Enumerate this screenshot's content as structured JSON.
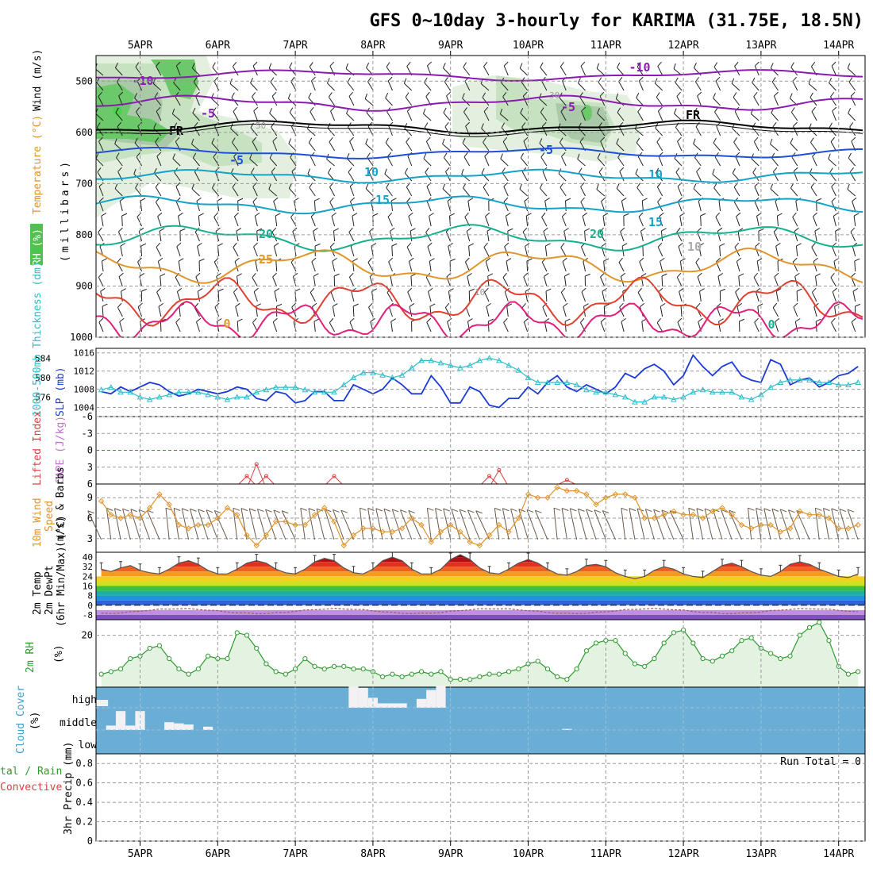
{
  "title": "GFS 0~10day 3-hourly for KARIMA (31.75E, 18.5N)",
  "date_labels": [
    "5APR",
    "6APR",
    "7APR",
    "8APR",
    "9APR",
    "10APR",
    "11APR",
    "12APR",
    "13APR",
    "14APR"
  ],
  "colors": {
    "grid": "#9a9a9a",
    "cloud_bg": "#6aaed6",
    "cloud_fill": "#f3f1f4",
    "slp": "#1c3bd2",
    "thickness": "#2fbcc9",
    "wind10m": "#e0942c",
    "rh2m": "#2e9a2e",
    "cape": "#d94040",
    "purple_iso": "#8a1ab0",
    "blue_iso": "#1e4fd8",
    "cyan_iso": "#14a3c8",
    "teal_iso": "#14b08e",
    "orange_iso": "#e0962a",
    "red_iso": "#e04030",
    "magenta_iso": "#e0207a"
  },
  "panels": {
    "upper_air": {
      "ylabel_rh": "RH (%)",
      "ylabel_temp": "Temperature (°C)",
      "ylabel_wind": "Wind (m/s)",
      "ylabel_units": "(millibars)",
      "pressure_ticks": [
        "500",
        "600",
        "700",
        "800",
        "900",
        "1000"
      ],
      "isotherm_labels": [
        "-10",
        "-5",
        "FR",
        "-5",
        "10",
        "15",
        "20",
        "25",
        "0",
        "-10",
        "-5",
        "FR",
        "-5",
        "10",
        "15",
        "20",
        "10",
        "0"
      ],
      "rh_labels": [
        "50",
        "30",
        "10"
      ]
    },
    "slp_thickness": {
      "ylabel_left": "1000-500mb Thickness (dm)",
      "ylabel_right": "SLP (mb)",
      "thickness_ticks": [
        "584",
        "580",
        "576"
      ],
      "slp_ticks": [
        "1016",
        "1012",
        "1008",
        "1004"
      ]
    },
    "stability": {
      "ylabel_left": "Lifted Index",
      "ylabel_right": "CAPE (J/kg)",
      "ticks": [
        "-6",
        "-3",
        "0",
        "3",
        "6"
      ]
    },
    "wind10m": {
      "ylabel_left": "10m Wind",
      "ylabel_mid": "Speed",
      "ylabel_right": "(m/s) & Barbs",
      "ticks": [
        "9",
        "6",
        "3"
      ]
    },
    "temp2m": {
      "ylabel_1": "2m Temp",
      "ylabel_2": "2m DewPt",
      "ylabel_3": "(6hr Min/Max) (°C)",
      "ticks": [
        "40",
        "32",
        "24",
        "16",
        "8",
        "0",
        "-8"
      ]
    },
    "rh2m": {
      "ylabel_left": "2m RH",
      "ylabel_units": "(%)",
      "ticks": [
        "20"
      ]
    },
    "cloud": {
      "ylabel": "Cloud Cover",
      "ylabel_units": "(%)",
      "levels": [
        "high",
        "middle",
        "low"
      ]
    },
    "precip": {
      "ylabel_left_1": "tal / Rain",
      "ylabel_left_2": "Convective",
      "ylabel_right": "3hr Precip (mm)",
      "ticks": [
        "0.8",
        "0.6",
        "0.4",
        "0.2",
        "0"
      ],
      "run_total": "Run Total = 0"
    }
  },
  "chart_data": [
    {
      "type": "line",
      "name": "slp",
      "x_unit": "days from 5APR 00Z",
      "ylabel": "SLP (mb)",
      "ylim": [
        1002,
        1017
      ],
      "x": [
        -0.5,
        -0.375,
        -0.25,
        -0.125,
        0,
        0.125,
        0.25,
        0.375,
        0.5,
        0.625,
        0.75,
        0.875,
        1,
        1.125,
        1.25,
        1.375,
        1.5,
        1.625,
        1.75,
        1.875,
        2,
        2.125,
        2.25,
        2.375,
        2.5,
        2.625,
        2.75,
        2.875,
        3,
        3.125,
        3.25,
        3.375,
        3.5,
        3.625,
        3.75,
        3.875,
        4,
        4.125,
        4.25,
        4.375,
        4.5,
        4.625,
        4.75,
        4.875,
        5,
        5.125,
        5.25,
        5.375,
        5.5,
        5.625,
        5.75,
        5.875,
        6,
        6.125,
        6.25,
        6.375,
        6.5,
        6.625,
        6.75,
        6.875,
        7,
        7.125,
        7.25,
        7.375,
        7.5,
        7.625,
        7.75,
        7.875,
        8,
        8.125,
        8.25,
        8.375,
        8.5,
        8.625,
        8.75,
        8.875,
        9,
        9.125,
        9.25
      ],
      "values": [
        1007.5,
        1007,
        1008.5,
        1007.5,
        1008.5,
        1009.5,
        1009,
        1007.5,
        1006.5,
        1007,
        1008,
        1007.5,
        1007,
        1007.5,
        1008.5,
        1008,
        1006,
        1005.5,
        1007.5,
        1007,
        1005,
        1005.5,
        1007.5,
        1007.5,
        1005.5,
        1005.5,
        1009,
        1008,
        1007,
        1008,
        1010.5,
        1009,
        1007,
        1007,
        1011,
        1008.5,
        1005,
        1005,
        1008.5,
        1007.5,
        1004.5,
        1004,
        1006,
        1006,
        1008.5,
        1007,
        1009.5,
        1011,
        1008.5,
        1007.5,
        1009,
        1008,
        1007,
        1008.5,
        1011.5,
        1010.5,
        1012.5,
        1013.5,
        1012,
        1009,
        1011,
        1015.5,
        1013,
        1011,
        1013,
        1014,
        1011,
        1010,
        1009.5,
        1014.5,
        1013.5,
        1009,
        1010,
        1010.5,
        1008.5,
        1009.5,
        1011,
        1011.5,
        1013
      ]
    },
    {
      "type": "line",
      "name": "thickness",
      "x_unit": "days from 5APR 00Z",
      "ylabel": "1000-500mb Thickness (dm)",
      "ylim": [
        572,
        586
      ],
      "x": [
        -0.5,
        -0.375,
        -0.25,
        -0.125,
        0,
        0.125,
        0.25,
        0.375,
        0.5,
        0.625,
        0.75,
        0.875,
        1,
        1.125,
        1.25,
        1.375,
        1.5,
        1.625,
        1.75,
        1.875,
        2,
        2.125,
        2.25,
        2.375,
        2.5,
        2.625,
        2.75,
        2.875,
        3,
        3.125,
        3.25,
        3.375,
        3.5,
        3.625,
        3.75,
        3.875,
        4,
        4.125,
        4.25,
        4.375,
        4.5,
        4.625,
        4.75,
        4.875,
        5,
        5.125,
        5.25,
        5.375,
        5.5,
        5.625,
        5.75,
        5.875,
        6,
        6.125,
        6.25,
        6.375,
        6.5,
        6.625,
        6.75,
        6.875,
        7,
        7.125,
        7.25,
        7.375,
        7.5,
        7.625,
        7.75,
        7.875,
        8,
        8.125,
        8.25,
        8.375,
        8.5,
        8.625,
        8.75,
        8.875,
        9,
        9.125,
        9.25
      ],
      "values": [
        577.5,
        578,
        577,
        577,
        576,
        575.5,
        576,
        576.5,
        577,
        577,
        577,
        576.5,
        576,
        575.5,
        576,
        576,
        577,
        577.5,
        578,
        578,
        578,
        577.5,
        577,
        577,
        577,
        578.5,
        580,
        581,
        581,
        580.5,
        580,
        580.5,
        582,
        583.5,
        583.5,
        583,
        582.5,
        582,
        582.5,
        583.5,
        584,
        583.5,
        582.5,
        581.5,
        580,
        579,
        579,
        579,
        579,
        578.5,
        577.5,
        577,
        577,
        576.5,
        576,
        575,
        575,
        576,
        576,
        575.5,
        576,
        577,
        577.5,
        577,
        577,
        577,
        576,
        575.5,
        576.5,
        578,
        579,
        579.5,
        579.5,
        579.5,
        579,
        579,
        578.5,
        578.5,
        579
      ]
    },
    {
      "type": "line",
      "name": "10m wind speed",
      "x_unit": "days from 5APR 00Z",
      "ylabel": "(m/s)",
      "ylim": [
        1,
        11
      ],
      "x": [
        -0.5,
        -0.375,
        -0.25,
        -0.125,
        0,
        0.125,
        0.25,
        0.375,
        0.5,
        0.625,
        0.75,
        0.875,
        1,
        1.125,
        1.25,
        1.375,
        1.5,
        1.625,
        1.75,
        1.875,
        2,
        2.125,
        2.25,
        2.375,
        2.5,
        2.625,
        2.75,
        2.875,
        3,
        3.125,
        3.25,
        3.375,
        3.5,
        3.625,
        3.75,
        3.875,
        4,
        4.125,
        4.25,
        4.375,
        4.5,
        4.625,
        4.75,
        4.875,
        5,
        5.125,
        5.25,
        5.375,
        5.5,
        5.625,
        5.75,
        5.875,
        6,
        6.125,
        6.25,
        6.375,
        6.5,
        6.625,
        6.75,
        6.875,
        7,
        7.125,
        7.25,
        7.375,
        7.5,
        7.625,
        7.75,
        7.875,
        8,
        8.125,
        8.25,
        8.375,
        8.5,
        8.625,
        8.75,
        8.875,
        9,
        9.125,
        9.25
      ],
      "values": [
        8.5,
        6.5,
        6,
        6.5,
        6,
        7.5,
        9.5,
        8,
        5,
        4.5,
        5,
        5,
        6,
        7.5,
        6.5,
        3.5,
        2,
        3.5,
        5.5,
        5.5,
        5,
        5,
        6.5,
        7.5,
        5.5,
        2,
        3.5,
        4.5,
        4.5,
        4,
        4,
        4.5,
        6,
        5,
        2.5,
        4,
        5,
        4,
        2.5,
        2,
        3.5,
        5,
        4,
        6,
        9.5,
        9,
        9,
        10.5,
        10,
        10,
        9.5,
        8,
        9,
        9.5,
        9.5,
        9,
        6,
        6,
        6.5,
        7,
        6.5,
        6.5,
        6,
        7,
        7.5,
        6.5,
        5,
        4.5,
        5,
        5,
        4,
        4.5,
        7,
        6.5,
        6.5,
        6,
        4.5,
        4.5,
        5
      ]
    },
    {
      "type": "area",
      "name": "2m temp",
      "x_unit": "days from 5APR 00Z",
      "ylabel": "(°C)",
      "ylim": [
        -12,
        44
      ],
      "x": [
        -0.5,
        -0.375,
        -0.25,
        -0.125,
        0,
        0.125,
        0.25,
        0.375,
        0.5,
        0.625,
        0.75,
        0.875,
        1,
        1.125,
        1.25,
        1.375,
        1.5,
        1.625,
        1.75,
        1.875,
        2,
        2.125,
        2.25,
        2.375,
        2.5,
        2.625,
        2.75,
        2.875,
        3,
        3.125,
        3.25,
        3.375,
        3.5,
        3.625,
        3.75,
        3.875,
        4,
        4.125,
        4.25,
        4.375,
        4.5,
        4.625,
        4.75,
        4.875,
        5,
        5.125,
        5.25,
        5.375,
        5.5,
        5.625,
        5.75,
        5.875,
        6,
        6.125,
        6.25,
        6.375,
        6.5,
        6.625,
        6.75,
        6.875,
        7,
        7.125,
        7.25,
        7.375,
        7.5,
        7.625,
        7.75,
        7.875,
        8,
        8.125,
        8.25,
        8.375,
        8.5,
        8.625,
        8.75,
        8.875,
        9,
        9.125,
        9.25
      ],
      "values": [
        30,
        28,
        31,
        33,
        29,
        27,
        26,
        30,
        35,
        37,
        34,
        29,
        26,
        26,
        30,
        35,
        37,
        35,
        30,
        27,
        26,
        30,
        36,
        39,
        37,
        31,
        27,
        26,
        30,
        37,
        40,
        37,
        30,
        26,
        26,
        30,
        38,
        42,
        38,
        31,
        27,
        26,
        30,
        35,
        38,
        35,
        30,
        26,
        25,
        28,
        33,
        34,
        32,
        27,
        24,
        22,
        24,
        29,
        32,
        30,
        26,
        24,
        23,
        28,
        33,
        35,
        32,
        28,
        25,
        24,
        28,
        34,
        36,
        34,
        30,
        27,
        24,
        23,
        26
      ]
    },
    {
      "type": "area",
      "name": "2m RH",
      "x_unit": "days from 5APR 00Z",
      "ylabel": "(%)",
      "ylim": [
        0,
        26
      ],
      "x": [
        -0.5,
        -0.375,
        -0.25,
        -0.125,
        0,
        0.125,
        0.25,
        0.375,
        0.5,
        0.625,
        0.75,
        0.875,
        1,
        1.125,
        1.25,
        1.375,
        1.5,
        1.625,
        1.75,
        1.875,
        2,
        2.125,
        2.25,
        2.375,
        2.5,
        2.625,
        2.75,
        2.875,
        3,
        3.125,
        3.25,
        3.375,
        3.5,
        3.625,
        3.75,
        3.875,
        4,
        4.125,
        4.25,
        4.375,
        4.5,
        4.625,
        4.75,
        4.875,
        5,
        5.125,
        5.25,
        5.375,
        5.5,
        5.625,
        5.75,
        5.875,
        6,
        6.125,
        6.25,
        6.375,
        6.5,
        6.625,
        6.75,
        6.875,
        7,
        7.125,
        7.25,
        7.375,
        7.5,
        7.625,
        7.75,
        7.875,
        8,
        8.125,
        8.25,
        8.375,
        8.5,
        8.625,
        8.75,
        8.875,
        9,
        9.125,
        9.25
      ],
      "values": [
        5,
        6,
        7,
        11,
        12,
        15,
        16,
        11,
        7,
        5,
        7,
        12,
        11,
        11,
        21,
        20,
        15,
        9,
        6,
        5,
        7,
        11,
        8,
        7,
        8,
        8,
        7,
        7,
        6,
        4,
        5,
        4,
        5,
        6,
        5,
        6,
        3,
        3,
        3,
        4,
        5,
        5,
        6,
        7,
        9,
        10,
        7,
        4,
        3,
        7,
        14,
        17,
        18,
        18,
        13,
        9,
        8,
        11,
        17,
        21,
        22,
        17,
        11,
        10,
        12,
        14,
        18,
        19,
        15,
        13,
        11,
        12,
        20,
        23,
        25,
        18,
        8,
        5,
        6
      ]
    },
    {
      "type": "bar",
      "name": "CAPE",
      "x_unit": "days from 5APR 00Z",
      "ylabel": "CAPE (J/kg)",
      "x": [
        1.375,
        1.5,
        1.625,
        2.5,
        4.5,
        4.625,
        5.5
      ],
      "values": [
        2,
        5,
        2,
        2,
        2,
        3.5,
        1
      ]
    },
    {
      "type": "bar",
      "name": "high cloud cover",
      "x_unit": "days from 5APR 00Z",
      "ylabel": "(%)",
      "x": [
        2.75,
        2.875,
        3.0,
        3.125,
        3.25,
        3.375,
        3.5,
        3.625,
        3.75,
        3.875
      ],
      "values": [
        95,
        90,
        45,
        20,
        20,
        20,
        0,
        40,
        80,
        100
      ]
    },
    {
      "type": "bar",
      "name": "middle cloud cover",
      "x_unit": "days from 5APR 00Z",
      "ylabel": "(%)",
      "x": [
        -0.375,
        -0.25,
        -0.125,
        0.0,
        0.375,
        0.5,
        0.625,
        0.875,
        5.5
      ],
      "values": [
        20,
        85,
        20,
        85,
        35,
        30,
        25,
        15,
        5
      ]
    },
    {
      "type": "bar",
      "name": "3hr precip",
      "x_unit": "days from 5APR 00Z",
      "ylabel": "3hr Precip (mm)",
      "ylim": [
        0,
        0.9
      ],
      "values": []
    }
  ]
}
